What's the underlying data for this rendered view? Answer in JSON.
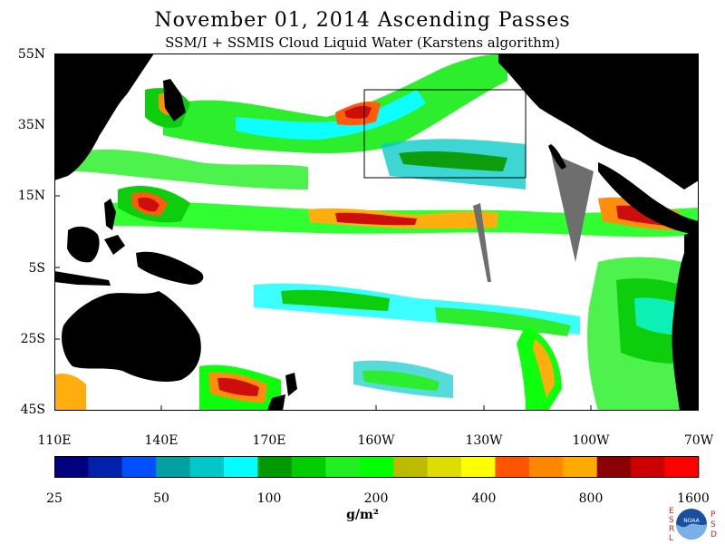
{
  "title": "November 01, 2014  Ascending Passes",
  "subtitle": "SSM/I + SSMIS Cloud Liquid Water (Karstens algorithm)",
  "lat_labels": [
    "55N",
    "35N",
    "15N",
    "5S",
    "25S",
    "45S"
  ],
  "lon_labels": [
    "110E",
    "140E",
    "170E",
    "160W",
    "130W",
    "100W",
    "70W"
  ],
  "colorbar": {
    "colors": [
      "#00007f",
      "#0022aa",
      "#0050ff",
      "#00a0a0",
      "#00c8c8",
      "#00ffff",
      "#009900",
      "#00cc00",
      "#22ee22",
      "#00ff00",
      "#bbbb00",
      "#dddd00",
      "#ffff00",
      "#ff5500",
      "#ff8800",
      "#ffaa00",
      "#8b0000",
      "#cc0000",
      "#ff0000"
    ],
    "tick_labels": [
      "25",
      "50",
      "100",
      "200",
      "400",
      "800",
      "1600"
    ],
    "units": "g/m²"
  },
  "logos": {
    "left_letters": [
      "E",
      "S",
      "R",
      "L"
    ],
    "right_letters": [
      "P",
      "S",
      "D"
    ],
    "center_text": "NOAA"
  },
  "colors": {
    "land": "#000000",
    "missing": "#6e6e6e",
    "ocean_clear": "#ffffff"
  }
}
